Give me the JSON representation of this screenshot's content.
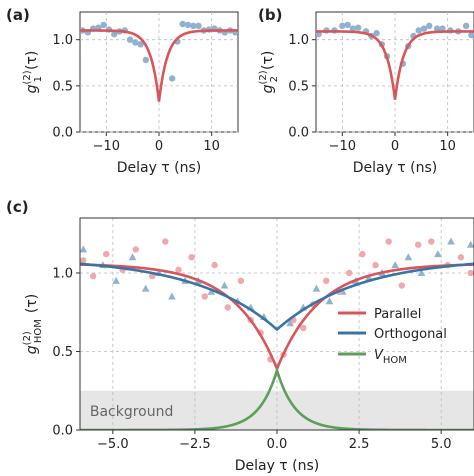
{
  "colors": {
    "parallel": "#d9555a",
    "orthogonal": "#3a74a5",
    "vhom": "#5c9e5c",
    "marker_red": "#f0a8aa",
    "marker_blue": "#8fb2cf",
    "background_band": "#e6e6e6",
    "grid": "#bbbbbb"
  },
  "chart_data": [
    {
      "id": "a",
      "panel_label": "(a)",
      "type": "scatter",
      "xlabel": "Delay τ (ns)",
      "ylabel_main": "g",
      "ylabel_sup": "(2)",
      "ylabel_sub": "1",
      "ylabel_tail": "(τ)",
      "xlim": [
        -15,
        15
      ],
      "ylim": [
        0,
        1.3
      ],
      "xticks": [
        -10,
        0,
        10
      ],
      "xtick_labels": [
        "−10",
        "0",
        "10"
      ],
      "yticks": [
        0,
        0.5,
        1.0
      ],
      "ytick_labels": [
        "0.0",
        "0.5",
        "1.0"
      ],
      "grid": true,
      "fit": {
        "type": "dip",
        "baseline": 1.1,
        "minimum": 0.33,
        "tau_ns": 1.6,
        "color_key": "parallel"
      },
      "points": {
        "x": [
          -14.5,
          -13.5,
          -12.5,
          -11.5,
          -10.5,
          -9.5,
          -8.5,
          -7.5,
          -6.5,
          -5.5,
          -4.5,
          -3.5,
          -2.5,
          2.5,
          3.5,
          4.5,
          5.5,
          6.5,
          7.5,
          8.5,
          9.5,
          10.5,
          11.5,
          12.5,
          13.5,
          14.5
        ],
        "y": [
          1.1,
          1.08,
          1.12,
          1.13,
          1.16,
          1.11,
          1.06,
          1.09,
          1.1,
          1.0,
          0.97,
          0.95,
          0.78,
          0.58,
          0.98,
          1.17,
          1.16,
          1.15,
          1.15,
          1.1,
          1.11,
          1.12,
          1.1,
          1.08,
          1.1,
          1.08
        ],
        "color_key": "marker_blue"
      }
    },
    {
      "id": "b",
      "panel_label": "(b)",
      "type": "scatter",
      "xlabel": "Delay τ (ns)",
      "ylabel_main": "g",
      "ylabel_sup": "(2)",
      "ylabel_sub": "2",
      "ylabel_tail": "(τ)",
      "xlim": [
        -15,
        15
      ],
      "ylim": [
        0,
        1.3
      ],
      "xticks": [
        -10,
        0,
        10
      ],
      "xtick_labels": [
        "−10",
        "0",
        "10"
      ],
      "yticks": [
        0,
        0.5,
        1.0
      ],
      "ytick_labels": [
        "0.0",
        "0.5",
        "1.0"
      ],
      "grid": true,
      "fit": {
        "type": "dip",
        "baseline": 1.09,
        "minimum": 0.35,
        "tau_ns": 1.6,
        "color_key": "parallel"
      },
      "points": {
        "x": [
          -14.5,
          -13,
          -11.5,
          -10,
          -9,
          -8,
          -7,
          -5.5,
          -4.5,
          -3.5,
          -2.5,
          -1.5,
          1.5,
          2.5,
          3.5,
          4.5,
          5.5,
          6.5,
          8,
          9,
          10.5,
          12,
          13.5,
          14.5
        ],
        "y": [
          1.06,
          1.1,
          1.1,
          1.15,
          1.16,
          1.12,
          1.13,
          1.09,
          1.04,
          1.07,
          0.95,
          0.82,
          0.74,
          0.93,
          1.04,
          1.1,
          1.12,
          1.15,
          1.12,
          1.12,
          1.1,
          1.09,
          1.15,
          1.05
        ],
        "color_key": "marker_blue"
      }
    },
    {
      "id": "c",
      "panel_label": "(c)",
      "type": "scatter",
      "xlabel": "Delay τ (ns)",
      "ylabel_main": "g",
      "ylabel_sup": "(2)",
      "ylabel_sub": "HOM",
      "ylabel_tail": "(τ)",
      "xlim": [
        -6,
        6
      ],
      "ylim": [
        0,
        1.35
      ],
      "xticks": [
        -5,
        -2.5,
        0,
        2.5,
        5
      ],
      "xtick_labels": [
        "−5.0",
        "−2.5",
        "0.0",
        "2.5",
        "5.0"
      ],
      "yticks": [
        0,
        0.5,
        1.0
      ],
      "ytick_labels": [
        "0.0",
        "0.5",
        "1.0"
      ],
      "grid": true,
      "background": {
        "label": "Background",
        "ymax": 0.25
      },
      "legend": {
        "placement": "center-right",
        "entries": [
          {
            "label": "Parallel",
            "color_key": "parallel"
          },
          {
            "label": "Orthogonal",
            "color_key": "orthogonal"
          },
          {
            "label_main": "V",
            "label_sub": "HOM",
            "color_key": "vhom"
          }
        ]
      },
      "series": [
        {
          "key": "parallel",
          "fit": {
            "type": "dip",
            "baseline": 1.06,
            "minimum": 0.39,
            "tau_ns": 1.3
          }
        },
        {
          "key": "orthogonal",
          "fit": {
            "type": "dip",
            "baseline": 1.1,
            "minimum": 0.64,
            "tau_ns": 2.5
          }
        },
        {
          "key": "vhom",
          "fit": {
            "type": "peak",
            "amplitude": 0.38,
            "tau_ns": 0.55
          }
        }
      ],
      "points_parallel": {
        "x": [
          -5.9,
          -5.6,
          -5.2,
          -4.7,
          -4.3,
          -3.8,
          -3.4,
          -3.0,
          -2.6,
          -2.2,
          -1.9,
          -1.5,
          -1.1,
          -0.8,
          -0.5,
          -0.2,
          0.2,
          0.5,
          0.8,
          1.1,
          1.5,
          1.9,
          2.2,
          2.6,
          3.0,
          3.4,
          3.8,
          4.3,
          4.7,
          5.2,
          5.6,
          5.9
        ],
        "y": [
          1.08,
          0.98,
          1.12,
          1.02,
          1.15,
          0.98,
          1.2,
          1.02,
          1.1,
          0.85,
          1.05,
          0.78,
          0.95,
          0.7,
          0.62,
          0.45,
          0.48,
          0.7,
          0.65,
          0.8,
          0.95,
          0.88,
          1.0,
          1.12,
          1.05,
          1.2,
          0.92,
          1.18,
          1.2,
          1.05,
          1.1,
          1.0
        ],
        "color_key": "marker_red"
      },
      "points_orthogonal": {
        "x": [
          -5.9,
          -5.3,
          -4.9,
          -4.4,
          -4.0,
          -3.6,
          -3.2,
          -2.8,
          -2.4,
          -2.0,
          -1.6,
          -1.2,
          -0.8,
          -0.4,
          0.4,
          0.8,
          1.2,
          1.6,
          2.0,
          2.4,
          2.8,
          3.2,
          3.6,
          4.0,
          4.4,
          4.9,
          5.3,
          5.9
        ],
        "y": [
          1.15,
          1.05,
          0.95,
          1.1,
          0.9,
          1.0,
          0.85,
          0.95,
          0.95,
          0.88,
          0.92,
          0.82,
          0.78,
          0.72,
          0.68,
          0.78,
          0.9,
          0.82,
          0.88,
          0.95,
          0.97,
          1.0,
          1.05,
          1.1,
          1.0,
          1.12,
          1.2,
          1.18
        ],
        "color_key": "marker_blue"
      }
    }
  ]
}
